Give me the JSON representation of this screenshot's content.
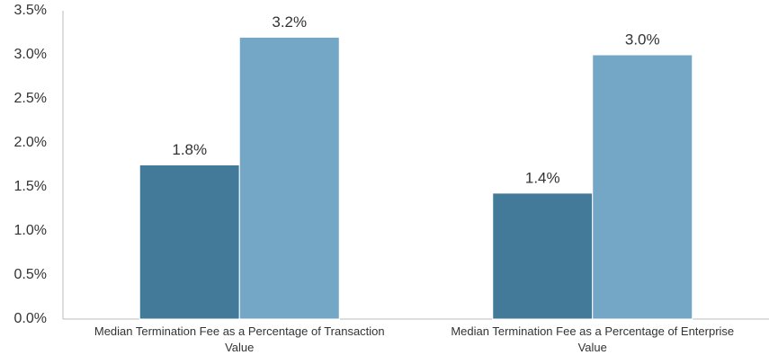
{
  "chart_data": {
    "type": "bar",
    "categories": [
      "Median Termination Fee as a Percentage of Transaction Value",
      "Median Termination Fee as a Percentage of Enterprise Value"
    ],
    "series": [
      {
        "color": "#437a9a",
        "values": [
          1.75,
          1.43
        ],
        "value_labels": [
          "1.8%",
          "1.4%"
        ]
      },
      {
        "color": "#74a6c6",
        "values": [
          3.2,
          3.0
        ],
        "value_labels": [
          "3.2%",
          "3.0%"
        ]
      }
    ],
    "ylim": [
      0,
      3.5
    ],
    "yticks": [
      {
        "value": 0,
        "label": "0.0%"
      },
      {
        "value": 0.5,
        "label": "0.5%"
      },
      {
        "value": 1,
        "label": "1.0%"
      },
      {
        "value": 1.5,
        "label": "1.5%"
      },
      {
        "value": 2,
        "label": "2.0%"
      },
      {
        "value": 2.5,
        "label": "2.5%"
      },
      {
        "value": 3,
        "label": "3.0%"
      },
      {
        "value": 3.5,
        "label": "3.5%"
      }
    ],
    "grid": false
  }
}
